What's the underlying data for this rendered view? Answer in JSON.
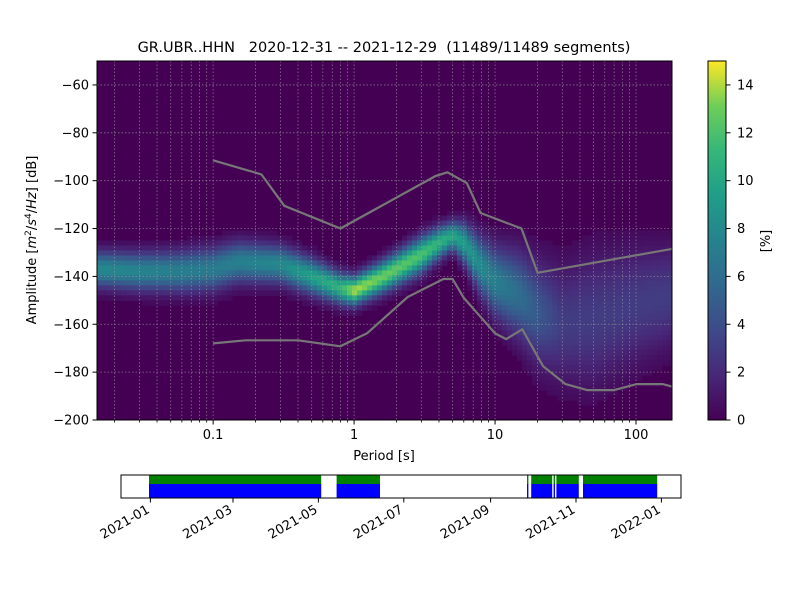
{
  "chart_data": [
    {
      "type": "heatmap",
      "title": "GR.UBR..HHN   2020-12-31 -- 2021-12-29  (11489/11489 segments)",
      "xlabel": "Period [s]",
      "ylabel_parts": [
        "Amplitude [",
        "m",
        "2",
        "/",
        "s",
        "4",
        "/",
        "Hz",
        "] [dB]"
      ],
      "x_scale": "log",
      "xlim": [
        0.015,
        180
      ],
      "ylim": [
        -200,
        -50
      ],
      "x_ticks": [
        {
          "value": 0.1,
          "label": "0.1"
        },
        {
          "value": 1,
          "label": "1"
        },
        {
          "value": 10,
          "label": "10"
        },
        {
          "value": 100,
          "label": "100"
        }
      ],
      "y_ticks": [
        {
          "value": -60,
          "label": "−60"
        },
        {
          "value": -80,
          "label": "−80"
        },
        {
          "value": -100,
          "label": "−100"
        },
        {
          "value": -120,
          "label": "−120"
        },
        {
          "value": -140,
          "label": "−140"
        },
        {
          "value": -160,
          "label": "−160"
        },
        {
          "value": -180,
          "label": "−180"
        },
        {
          "value": -200,
          "label": "−200"
        }
      ],
      "grid": true,
      "colormap": "viridis",
      "colorbar": {
        "label": "[%]",
        "range": [
          0,
          15
        ],
        "ticks": [
          {
            "value": 0,
            "label": "0"
          },
          {
            "value": 2,
            "label": "2"
          },
          {
            "value": 4,
            "label": "4"
          },
          {
            "value": 6,
            "label": "6"
          },
          {
            "value": 8,
            "label": "8"
          },
          {
            "value": 10,
            "label": "10"
          },
          {
            "value": 12,
            "label": "12"
          },
          {
            "value": 14,
            "label": "14"
          }
        ]
      },
      "density_band": {
        "center": [
          [
            0.015,
            -137
          ],
          [
            0.03,
            -138
          ],
          [
            0.06,
            -138
          ],
          [
            0.1,
            -137
          ],
          [
            0.15,
            -134
          ],
          [
            0.3,
            -135
          ],
          [
            0.5,
            -140
          ],
          [
            0.8,
            -145
          ],
          [
            1.0,
            -146
          ],
          [
            1.5,
            -141
          ],
          [
            2,
            -137
          ],
          [
            3,
            -131
          ],
          [
            4,
            -126
          ],
          [
            5,
            -123
          ],
          [
            6,
            -126
          ],
          [
            8,
            -136
          ],
          [
            10,
            -142
          ],
          [
            15,
            -148
          ],
          [
            20,
            -155
          ],
          [
            30,
            -160
          ],
          [
            50,
            -158
          ],
          [
            100,
            -152
          ],
          [
            180,
            -148
          ]
        ],
        "width": [
          [
            0.015,
            5
          ],
          [
            0.1,
            6
          ],
          [
            0.5,
            5
          ],
          [
            1,
            4
          ],
          [
            3,
            5
          ],
          [
            5,
            4
          ],
          [
            8,
            8
          ],
          [
            20,
            14
          ],
          [
            50,
            18
          ],
          [
            180,
            14
          ]
        ],
        "peak": [
          [
            0.015,
            8
          ],
          [
            0.1,
            7
          ],
          [
            0.3,
            8
          ],
          [
            0.8,
            11
          ],
          [
            1,
            14
          ],
          [
            1.5,
            13
          ],
          [
            3,
            12
          ],
          [
            5,
            10
          ],
          [
            8,
            8
          ],
          [
            15,
            6
          ],
          [
            30,
            3
          ],
          [
            180,
            3
          ]
        ]
      },
      "noise_models": [
        {
          "points": [
            [
              0.1,
              -91.5
            ],
            [
              0.22,
              -97.4
            ],
            [
              0.32,
              -110.5
            ],
            [
              0.8,
              -120
            ],
            [
              3.8,
              -98
            ],
            [
              4.6,
              -96.5
            ],
            [
              6.3,
              -101
            ],
            [
              7.9,
              -113.5
            ],
            [
              15.4,
              -120
            ],
            [
              20,
              -138.5
            ],
            [
              180,
              -128.5
            ]
          ]
        },
        {
          "points": [
            [
              0.1,
              -168
            ],
            [
              0.17,
              -166.7
            ],
            [
              0.4,
              -166.7
            ],
            [
              0.8,
              -169.2
            ],
            [
              1.24,
              -163.7
            ],
            [
              2.4,
              -148.6
            ],
            [
              4.3,
              -141.1
            ],
            [
              5,
              -141.1
            ],
            [
              6,
              -149
            ],
            [
              10,
              -163.8
            ],
            [
              12,
              -166.2
            ],
            [
              15.6,
              -162.1
            ],
            [
              21.9,
              -177.5
            ],
            [
              31.6,
              -185
            ],
            [
              45,
              -187.5
            ],
            [
              70,
              -187.5
            ],
            [
              101,
              -185
            ],
            [
              154,
              -185
            ],
            [
              180,
              -186
            ]
          ]
        }
      ]
    },
    {
      "type": "timeline",
      "x_ticks": [
        "2021-01",
        "2021-03",
        "2021-05",
        "2021-07",
        "2021-09",
        "2021-11",
        "2022-01"
      ],
      "x_range": [
        "2020-12-11",
        "2022-01-15"
      ],
      "segments": [
        {
          "start": "2020-12-31",
          "end": "2021-05-03"
        },
        {
          "start": "2021-05-14",
          "end": "2021-06-14"
        },
        {
          "start": "2021-09-27",
          "end": "2021-09-28"
        },
        {
          "start": "2021-09-30",
          "end": "2021-10-15"
        },
        {
          "start": "2021-10-16",
          "end": "2021-10-17"
        },
        {
          "start": "2021-10-18",
          "end": "2021-11-03"
        },
        {
          "start": "2021-11-06",
          "end": "2021-12-29"
        }
      ],
      "colors": {
        "top": "#008000",
        "bottom": "#0000ff"
      }
    }
  ]
}
